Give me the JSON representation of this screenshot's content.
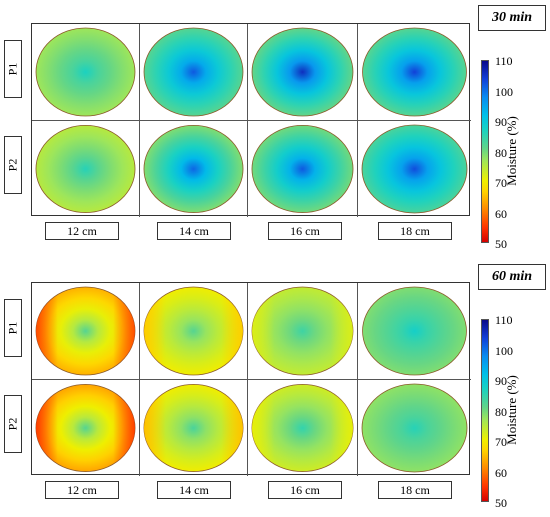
{
  "chart_data": [
    {
      "type": "heatmap",
      "time_label": "30 min",
      "rows": [
        "P1",
        "P2"
      ],
      "columns": [
        "12 cm",
        "14 cm",
        "16 cm",
        "18 cm"
      ],
      "colorbar": {
        "label": "Moisture (%)",
        "min": 50,
        "max": 110,
        "ticks": [
          "50",
          "60",
          "70",
          "80",
          "90",
          "100",
          "110"
        ]
      },
      "cells": [
        {
          "row": "P1",
          "column": "12 cm",
          "edge_moisture": 77,
          "center_moisture": 87,
          "side_bias": 0
        },
        {
          "row": "P1",
          "column": "14 cm",
          "edge_moisture": 82,
          "center_moisture": 102,
          "side_bias": 0
        },
        {
          "row": "P1",
          "column": "16 cm",
          "edge_moisture": 81,
          "center_moisture": 106,
          "side_bias": 0
        },
        {
          "row": "P1",
          "column": "18 cm",
          "edge_moisture": 82,
          "center_moisture": 104,
          "side_bias": 0
        },
        {
          "row": "P2",
          "column": "12 cm",
          "edge_moisture": 75,
          "center_moisture": 86,
          "side_bias": 0
        },
        {
          "row": "P2",
          "column": "14 cm",
          "edge_moisture": 79,
          "center_moisture": 101,
          "side_bias": 0
        },
        {
          "row": "P2",
          "column": "16 cm",
          "edge_moisture": 80,
          "center_moisture": 102,
          "side_bias": 0
        },
        {
          "row": "P2",
          "column": "18 cm",
          "edge_moisture": 83,
          "center_moisture": 103,
          "side_bias": 0
        }
      ]
    },
    {
      "type": "heatmap",
      "time_label": "60 min",
      "rows": [
        "P1",
        "P2"
      ],
      "columns": [
        "12 cm",
        "14 cm",
        "16 cm",
        "18 cm"
      ],
      "colorbar": {
        "label": "Moisture (%)",
        "min": 50,
        "max": 110,
        "ticks": [
          "50",
          "60",
          "70",
          "80",
          "90",
          "100",
          "110"
        ]
      },
      "cells": [
        {
          "row": "P1",
          "column": "12 cm",
          "edge_moisture": 64,
          "center_moisture": 82,
          "side_bias": 8
        },
        {
          "row": "P1",
          "column": "14 cm",
          "edge_moisture": 70,
          "center_moisture": 82,
          "side_bias": 4
        },
        {
          "row": "P1",
          "column": "16 cm",
          "edge_moisture": 74,
          "center_moisture": 84,
          "side_bias": 2
        },
        {
          "row": "P1",
          "column": "18 cm",
          "edge_moisture": 79,
          "center_moisture": 88,
          "side_bias": 0
        },
        {
          "row": "P2",
          "column": "12 cm",
          "edge_moisture": 63,
          "center_moisture": 82,
          "side_bias": 8
        },
        {
          "row": "P2",
          "column": "14 cm",
          "edge_moisture": 70,
          "center_moisture": 83,
          "side_bias": 5
        },
        {
          "row": "P2",
          "column": "16 cm",
          "edge_moisture": 73,
          "center_moisture": 85,
          "side_bias": 2
        },
        {
          "row": "P2",
          "column": "18 cm",
          "edge_moisture": 78,
          "center_moisture": 86,
          "side_bias": 0
        }
      ]
    }
  ]
}
